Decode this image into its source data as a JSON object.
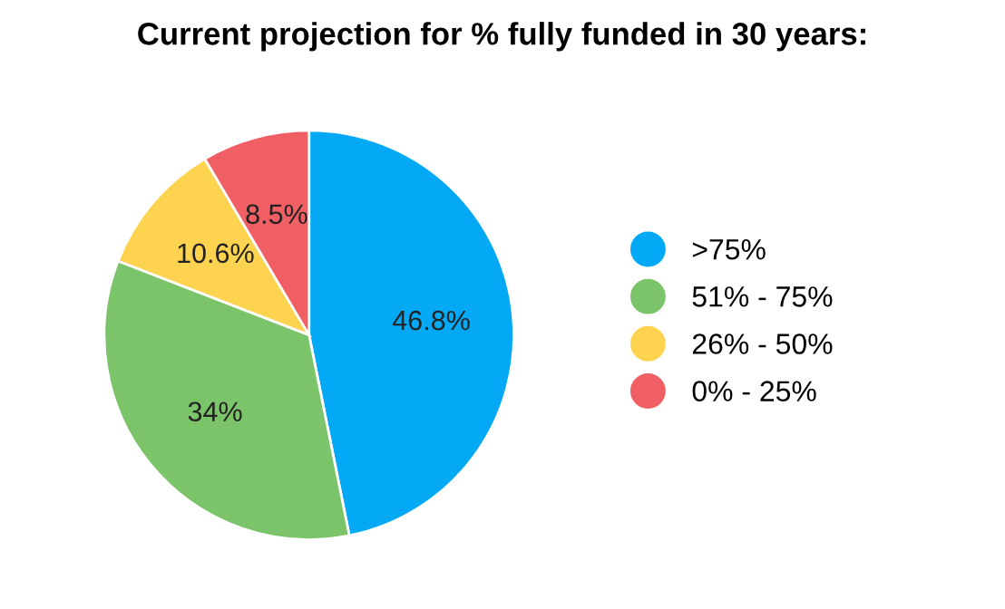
{
  "chart_data": {
    "type": "pie",
    "title": "Current projection for % fully funded in 30 years:",
    "categories": [
      ">75%",
      "51% - 75%",
      "26% - 50%",
      "0% - 25%"
    ],
    "values": [
      46.8,
      34,
      10.6,
      8.5
    ],
    "colors": [
      "#03a9f4",
      "#7cc46a",
      "#fdd34f",
      "#ef5f63"
    ],
    "value_labels": [
      "46.8%",
      "34%",
      "10.6%",
      "8.5%"
    ],
    "legend": "right"
  }
}
